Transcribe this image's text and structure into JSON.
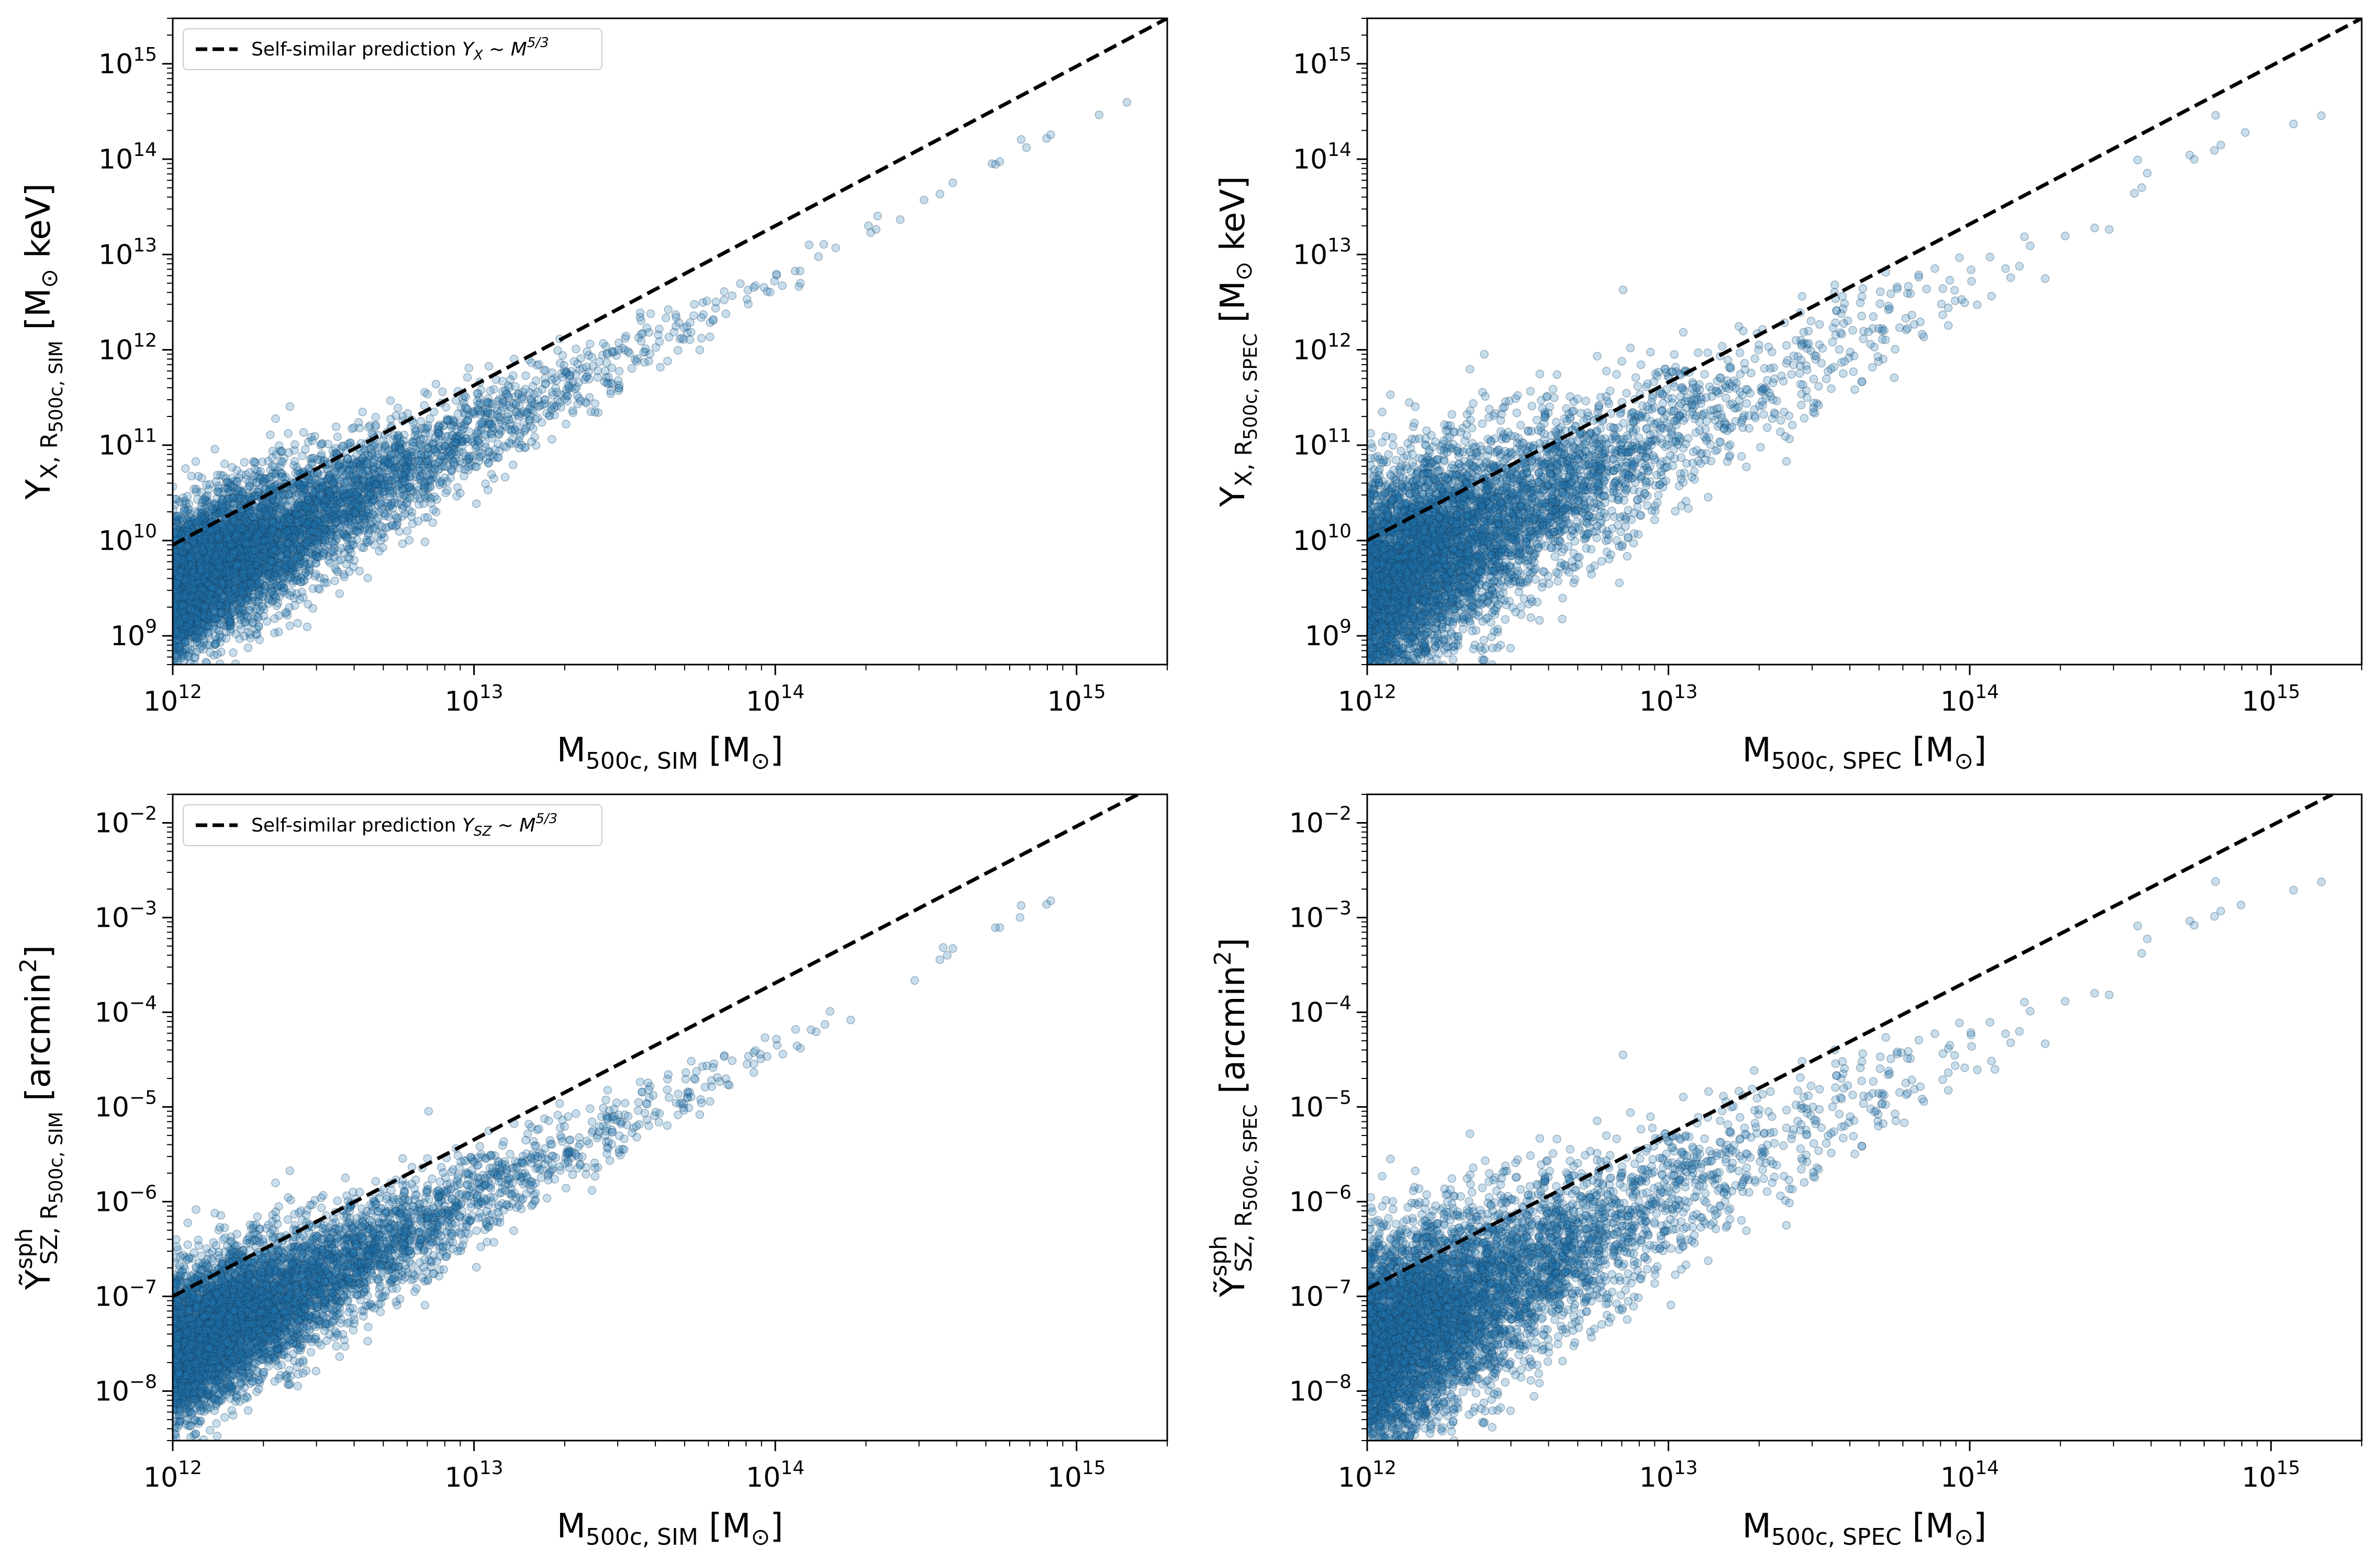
{
  "chart_data": [
    {
      "type": "scatter",
      "panel": "top-left",
      "xscale": "log",
      "yscale": "log",
      "xlim": [
        1000000000000.0,
        2000000000000000.0
      ],
      "ylim": [
        500000000.0,
        3000000000000000.0
      ],
      "xticks": [
        {
          "base": "10",
          "exp": "12",
          "value": 1000000000000.0
        },
        {
          "base": "10",
          "exp": "13",
          "value": 10000000000000.0
        },
        {
          "base": "10",
          "exp": "14",
          "value": 100000000000000.0
        },
        {
          "base": "10",
          "exp": "15",
          "value": 1000000000000000.0
        }
      ],
      "yticks": [
        {
          "base": "10",
          "exp": "9",
          "value": 1000000000.0
        },
        {
          "base": "10",
          "exp": "10",
          "value": 10000000000.0
        },
        {
          "base": "10",
          "exp": "11",
          "value": 100000000000.0
        },
        {
          "base": "10",
          "exp": "12",
          "value": 1000000000000.0
        },
        {
          "base": "10",
          "exp": "13",
          "value": 10000000000000.0
        },
        {
          "base": "10",
          "exp": "14",
          "value": 100000000000000.0
        },
        {
          "base": "10",
          "exp": "15",
          "value": 1000000000000000.0
        }
      ],
      "xlabel": {
        "main": "M",
        "sub": "500c, SIM",
        "unit": " [M",
        "odot": "⊙",
        "close": "]"
      },
      "ylabel": {
        "main": "Y",
        "sub": "X, ",
        "sub2": "R",
        "subsub": "500c, SIM",
        "unit": " [M",
        "odot": "⊙",
        "tail": " keV]"
      },
      "legend": {
        "text": "Self-similar prediction ",
        "math": "Y",
        "mathsub": "X",
        "rel": " ~ M",
        "sup": "5/3",
        "placement": "upper-left"
      },
      "self_similar_line": {
        "x": [
          1000000000000.0,
          2000000000000000.0
        ],
        "y": [
          9000000000.0,
          3000000000000000.0
        ],
        "style": "dashed"
      },
      "scatter": {
        "color": "#1f77b4",
        "edge": "#17405f",
        "n_approx": 6000,
        "relation": {
          "norm_at_1e12": 3000000000.0,
          "slope": 1.67,
          "scatter_dex_low": 0.4,
          "scatter_dex_high": 0.06,
          "offset_high_dex": -0.1
        }
      }
    },
    {
      "type": "scatter",
      "panel": "top-right",
      "xscale": "log",
      "yscale": "log",
      "xlim": [
        1000000000000.0,
        2000000000000000.0
      ],
      "ylim": [
        500000000.0,
        3000000000000000.0
      ],
      "xticks": [
        {
          "base": "10",
          "exp": "12",
          "value": 1000000000000.0
        },
        {
          "base": "10",
          "exp": "13",
          "value": 10000000000000.0
        },
        {
          "base": "10",
          "exp": "14",
          "value": 100000000000000.0
        },
        {
          "base": "10",
          "exp": "15",
          "value": 1000000000000000.0
        }
      ],
      "yticks": [
        {
          "base": "10",
          "exp": "9",
          "value": 1000000000.0
        },
        {
          "base": "10",
          "exp": "10",
          "value": 10000000000.0
        },
        {
          "base": "10",
          "exp": "11",
          "value": 100000000000.0
        },
        {
          "base": "10",
          "exp": "12",
          "value": 1000000000000.0
        },
        {
          "base": "10",
          "exp": "13",
          "value": 10000000000000.0
        },
        {
          "base": "10",
          "exp": "14",
          "value": 100000000000000.0
        },
        {
          "base": "10",
          "exp": "15",
          "value": 1000000000000000.0
        }
      ],
      "xlabel": {
        "main": "M",
        "sub": "500c, SPEC",
        "unit": " [M",
        "odot": "⊙",
        "close": "]"
      },
      "ylabel": {
        "main": "Y",
        "sub": "X, ",
        "sub2": "R",
        "subsub": "500c, SPEC",
        "unit": " [M",
        "odot": "⊙",
        "tail": " keV]"
      },
      "self_similar_line": {
        "x": [
          1000000000000.0,
          2000000000000000.0
        ],
        "y": [
          10000000000.0,
          3000000000000000.0
        ],
        "style": "dashed"
      },
      "scatter": {
        "color": "#1f77b4",
        "edge": "#17405f",
        "n_approx": 6000,
        "relation": {
          "norm_at_1e12": 3000000000.0,
          "slope": 1.67,
          "scatter_dex_low": 0.55,
          "scatter_dex_high": 0.18,
          "offset_high_dex": -0.1
        }
      }
    },
    {
      "type": "scatter",
      "panel": "bottom-left",
      "xscale": "log",
      "yscale": "log",
      "xlim": [
        1000000000000.0,
        2000000000000000.0
      ],
      "ylim": [
        3e-09,
        0.02
      ],
      "xticks": [
        {
          "base": "10",
          "exp": "12",
          "value": 1000000000000.0
        },
        {
          "base": "10",
          "exp": "13",
          "value": 10000000000000.0
        },
        {
          "base": "10",
          "exp": "14",
          "value": 100000000000000.0
        },
        {
          "base": "10",
          "exp": "15",
          "value": 1000000000000000.0
        }
      ],
      "yticks": [
        {
          "base": "10",
          "exp": "−8",
          "value": 1e-08
        },
        {
          "base": "10",
          "exp": "−7",
          "value": 1e-07
        },
        {
          "base": "10",
          "exp": "−6",
          "value": 1e-06
        },
        {
          "base": "10",
          "exp": "−5",
          "value": 1e-05
        },
        {
          "base": "10",
          "exp": "−4",
          "value": 0.0001
        },
        {
          "base": "10",
          "exp": "−3",
          "value": 0.001
        },
        {
          "base": "10",
          "exp": "−2",
          "value": 0.01
        }
      ],
      "xlabel": {
        "main": "M",
        "sub": "500c, SIM",
        "unit": " [M",
        "odot": "⊙",
        "close": "]"
      },
      "ylabel": {
        "main": "Ỹ",
        "sup": "sph",
        "sub": "SZ, ",
        "sub2": "R",
        "subsub": "500c, SIM",
        "unit": " [arcmin",
        "unitsup": "2",
        "tail": "]"
      },
      "legend": {
        "text": "Self-similar prediction ",
        "math": "Y",
        "mathsub": "SZ",
        "rel": " ~ M",
        "sup": "5/3",
        "placement": "upper-left"
      },
      "self_similar_line": {
        "x": [
          1000000000000.0,
          1600000000000000.0
        ],
        "y": [
          1e-07,
          0.02
        ],
        "style": "dashed"
      },
      "scatter": {
        "color": "#1f77b4",
        "edge": "#17405f",
        "n_approx": 6000,
        "relation": {
          "norm_at_1e12": 2.5e-08,
          "slope": 1.67,
          "scatter_dex_low": 0.4,
          "scatter_dex_high": 0.06,
          "offset_high_dex": -0.1
        }
      }
    },
    {
      "type": "scatter",
      "panel": "bottom-right",
      "xscale": "log",
      "yscale": "log",
      "xlim": [
        1000000000000.0,
        2000000000000000.0
      ],
      "ylim": [
        3e-09,
        0.02
      ],
      "xticks": [
        {
          "base": "10",
          "exp": "12",
          "value": 1000000000000.0
        },
        {
          "base": "10",
          "exp": "13",
          "value": 10000000000000.0
        },
        {
          "base": "10",
          "exp": "14",
          "value": 100000000000000.0
        },
        {
          "base": "10",
          "exp": "15",
          "value": 1000000000000000.0
        }
      ],
      "yticks": [
        {
          "base": "10",
          "exp": "−8",
          "value": 1e-08
        },
        {
          "base": "10",
          "exp": "−7",
          "value": 1e-07
        },
        {
          "base": "10",
          "exp": "−6",
          "value": 1e-06
        },
        {
          "base": "10",
          "exp": "−5",
          "value": 1e-05
        },
        {
          "base": "10",
          "exp": "−4",
          "value": 0.0001
        },
        {
          "base": "10",
          "exp": "−3",
          "value": 0.001
        },
        {
          "base": "10",
          "exp": "−2",
          "value": 0.01
        }
      ],
      "xlabel": {
        "main": "M",
        "sub": "500c, SPEC",
        "unit": " [M",
        "odot": "⊙",
        "close": "]"
      },
      "ylabel": {
        "main": "Ỹ",
        "sup": "sph",
        "sub": "SZ, ",
        "sub2": "R",
        "subsub": "500c, SPEC",
        "unit": " [arcmin",
        "unitsup": "2",
        "tail": "]"
      },
      "self_similar_line": {
        "x": [
          1000000000000.0,
          1600000000000000.0
        ],
        "y": [
          1.2e-07,
          0.02
        ],
        "style": "dashed"
      },
      "scatter": {
        "color": "#1f77b4",
        "edge": "#17405f",
        "n_approx": 6000,
        "relation": {
          "norm_at_1e12": 2.5e-08,
          "slope": 1.67,
          "scatter_dex_low": 0.55,
          "scatter_dex_high": 0.18,
          "offset_high_dex": -0.1
        }
      }
    }
  ]
}
